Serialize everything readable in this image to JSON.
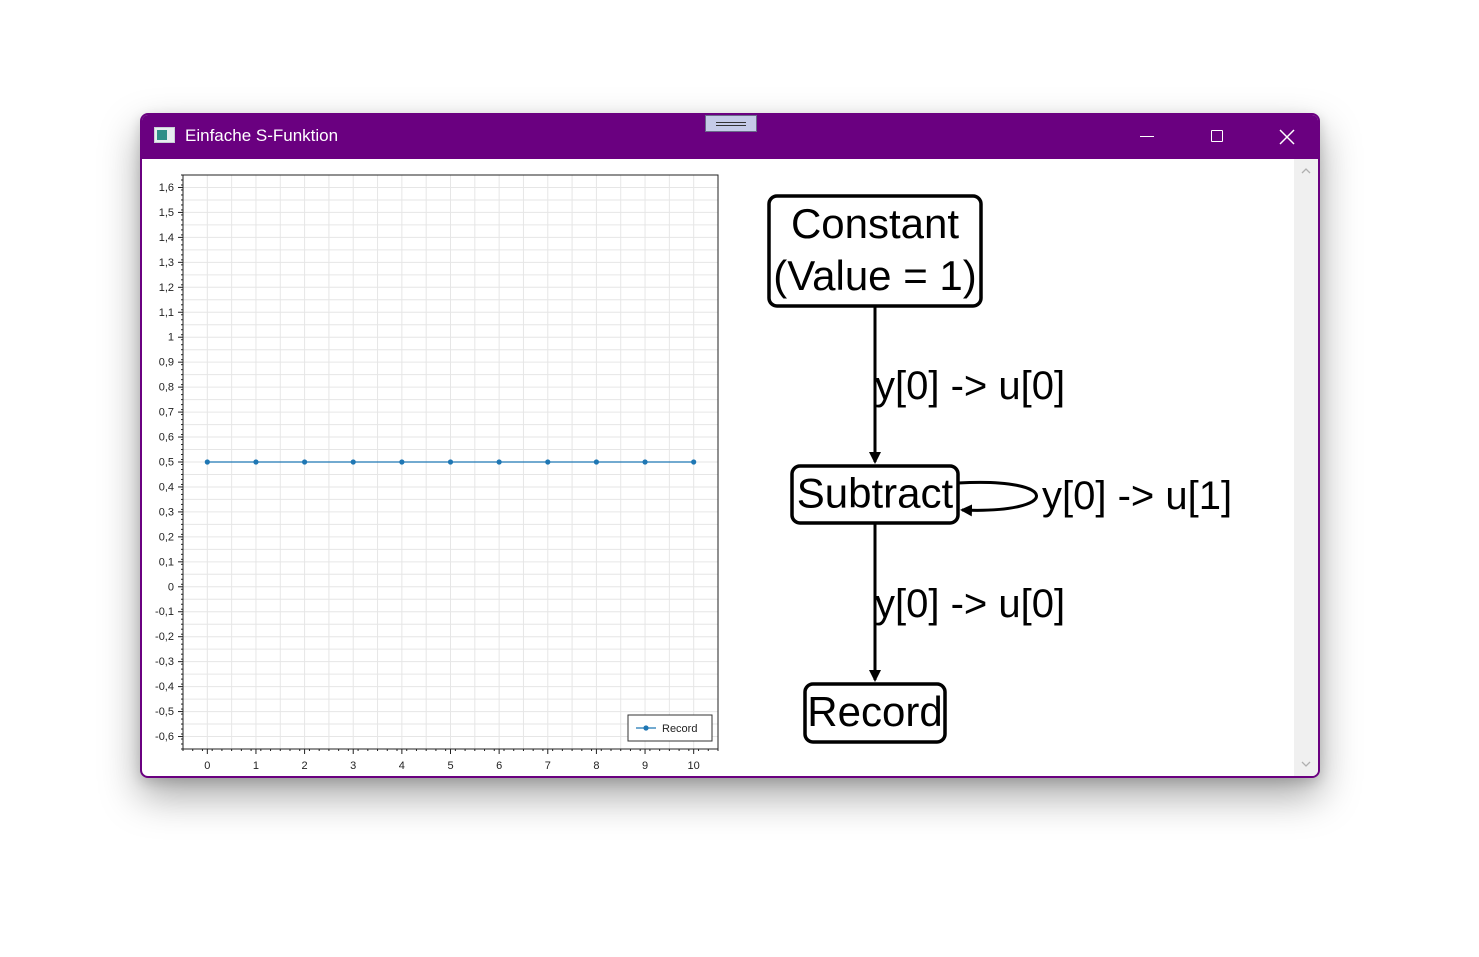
{
  "window": {
    "title": "Einfache S-Funktion",
    "accent_color": "#6a0080"
  },
  "icons": {
    "app": "app-icon",
    "minimize": "minimize-icon",
    "maximize": "maximize-icon",
    "close": "close-icon",
    "drag": "drag-handle-icon"
  },
  "chart_data": {
    "type": "line",
    "x": [
      0,
      1,
      2,
      3,
      4,
      5,
      6,
      7,
      8,
      9,
      10
    ],
    "series": [
      {
        "name": "Record",
        "values": [
          0.5,
          0.5,
          0.5,
          0.5,
          0.5,
          0.5,
          0.5,
          0.5,
          0.5,
          0.5,
          0.5
        ],
        "color": "#1f77b4"
      }
    ],
    "xlim": [
      -0.5,
      10.5
    ],
    "ylim": [
      -0.65,
      1.65
    ],
    "x_ticks": [
      "0",
      "1",
      "2",
      "3",
      "4",
      "5",
      "6",
      "7",
      "8",
      "9",
      "10"
    ],
    "y_ticks": [
      "1,6",
      "1,5",
      "1,4",
      "1,3",
      "1,2",
      "1,1",
      "1",
      "0,9",
      "0,8",
      "0,7",
      "0,6",
      "0,5",
      "0,4",
      "0,3",
      "0,2",
      "0,1",
      "0",
      "-0,1",
      "-0,2",
      "-0,3",
      "-0,4",
      "-0,5",
      "-0,6"
    ],
    "y_tick_values": [
      1.6,
      1.5,
      1.4,
      1.3,
      1.2,
      1.1,
      1.0,
      0.9,
      0.8,
      0.7,
      0.6,
      0.5,
      0.4,
      0.3,
      0.2,
      0.1,
      0,
      -0.1,
      -0.2,
      -0.3,
      -0.4,
      -0.5,
      -0.6
    ],
    "grid": true,
    "legend_placement": "bottom-right",
    "legend_label": "Record"
  },
  "diagram": {
    "nodes": [
      {
        "id": "constant",
        "lines": [
          "Constant",
          "(Value = 1)"
        ]
      },
      {
        "id": "subtract",
        "lines": [
          "Subtract"
        ]
      },
      {
        "id": "record",
        "lines": [
          "Record"
        ]
      }
    ],
    "edges": [
      {
        "from": "constant",
        "to": "subtract",
        "label": "y[0] -> u[0]"
      },
      {
        "from": "subtract",
        "to": "subtract",
        "label": "y[0] -> u[1]"
      },
      {
        "from": "subtract",
        "to": "record",
        "label": "y[0] -> u[0]"
      }
    ]
  }
}
